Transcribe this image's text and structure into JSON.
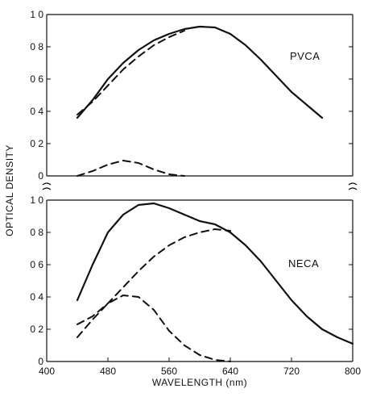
{
  "chart_data": [
    {
      "type": "line",
      "panel_label": "PVCA",
      "xlabel": "",
      "ylabel": "OPTICAL DENSITY",
      "xlim": [
        400,
        800
      ],
      "ylim": [
        0,
        1.0
      ],
      "yticks": [
        0,
        0.2,
        0.4,
        0.6,
        0.8,
        1.0
      ],
      "ytick_labels": [
        "0",
        "0 2",
        "0 4",
        "0 6",
        "0 8",
        "1 0"
      ],
      "series": [
        {
          "style": "solid",
          "x": [
            440,
            460,
            480,
            500,
            520,
            540,
            560,
            580,
            600,
            620,
            640,
            660,
            680,
            700,
            720,
            740,
            760
          ],
          "y": [
            0.36,
            0.47,
            0.6,
            0.7,
            0.78,
            0.84,
            0.88,
            0.91,
            0.925,
            0.92,
            0.88,
            0.81,
            0.72,
            0.62,
            0.52,
            0.44,
            0.36
          ]
        },
        {
          "style": "dashed",
          "x": [
            440,
            460,
            480,
            500,
            520,
            540,
            560,
            580
          ],
          "y": [
            0.38,
            0.46,
            0.56,
            0.66,
            0.74,
            0.81,
            0.86,
            0.9
          ]
        },
        {
          "style": "dashed",
          "x": [
            440,
            460,
            480,
            500,
            520,
            540,
            560,
            580
          ],
          "y": [
            0.0,
            0.03,
            0.07,
            0.095,
            0.08,
            0.04,
            0.01,
            0.0
          ]
        }
      ]
    },
    {
      "type": "line",
      "panel_label": "NECA",
      "xlabel": "WAVELENGTH (nm)",
      "ylabel": "OPTICAL DENSITY",
      "xlim": [
        400,
        800
      ],
      "ylim": [
        0,
        1.0
      ],
      "xticks": [
        400,
        480,
        560,
        640,
        720,
        800
      ],
      "xtick_labels": [
        "400",
        "480",
        "560",
        "640",
        "720",
        "800"
      ],
      "yticks": [
        0,
        0.2,
        0.4,
        0.6,
        0.8,
        1.0
      ],
      "ytick_labels": [
        "0",
        "0 2",
        "0 4",
        "0 6",
        "0 8",
        "1 0"
      ],
      "series": [
        {
          "style": "solid",
          "x": [
            440,
            460,
            480,
            500,
            520,
            540,
            560,
            580,
            600,
            620,
            640,
            660,
            680,
            700,
            720,
            740,
            760,
            780,
            800
          ],
          "y": [
            0.38,
            0.6,
            0.8,
            0.91,
            0.97,
            0.98,
            0.95,
            0.91,
            0.87,
            0.85,
            0.8,
            0.72,
            0.62,
            0.5,
            0.38,
            0.28,
            0.2,
            0.15,
            0.11
          ]
        },
        {
          "style": "dashed",
          "x": [
            440,
            460,
            480,
            500,
            520,
            540,
            560,
            580,
            600,
            620,
            640
          ],
          "y": [
            0.23,
            0.28,
            0.36,
            0.46,
            0.56,
            0.65,
            0.72,
            0.77,
            0.8,
            0.82,
            0.81
          ]
        },
        {
          "style": "dashed",
          "x": [
            440,
            460,
            480,
            500,
            520,
            540,
            560,
            580,
            600,
            620,
            640
          ],
          "y": [
            0.15,
            0.26,
            0.36,
            0.41,
            0.4,
            0.32,
            0.19,
            0.1,
            0.04,
            0.01,
            0.0
          ]
        }
      ]
    }
  ]
}
